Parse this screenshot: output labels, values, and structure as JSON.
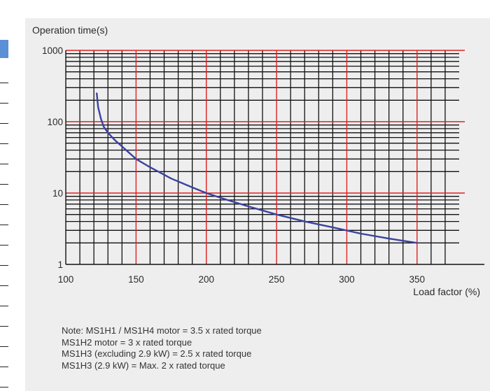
{
  "chart_data": {
    "type": "line",
    "ylabel": "Operation time(s)",
    "xlabel": "Load factor (%)",
    "xlim": [
      100,
      380
    ],
    "ylim": [
      1,
      1000
    ],
    "yscale": "log",
    "grid": true,
    "x_ticks": [
      100,
      150,
      200,
      250,
      300,
      350
    ],
    "y_ticks": [
      {
        "value": 1,
        "label": "1"
      },
      {
        "value": 10,
        "label": "10"
      },
      {
        "value": 100,
        "label": "100"
      },
      {
        "value": 1000,
        "label": "1000"
      }
    ],
    "series": [
      {
        "color": "#3b42a0",
        "x": [
          122,
          123,
          125,
          127,
          130,
          135,
          140,
          150,
          160,
          175,
          190,
          200,
          215,
          230,
          250,
          270,
          290,
          310,
          330,
          350
        ],
        "y": [
          250,
          160,
          110,
          85,
          70,
          55,
          45,
          30,
          23,
          16,
          12,
          10,
          8,
          6.5,
          5,
          4,
          3.3,
          2.7,
          2.3,
          2.0
        ]
      }
    ]
  },
  "notes": [
    "Note: MS1H1 / MS1H4 motor = 3.5 x rated torque",
    "MS1H2 motor = 3 x  rated torque",
    "MS1H3 (excluding 2.9 kW) = 2.5 x rated torque",
    "MS1H3 (2.9 kW) = Max. 2 x rated torque"
  ],
  "colors": {
    "panel": "#eeeeee",
    "major_grid": "#e02020",
    "minor_grid": "#111111",
    "curve": "#3b42a0"
  }
}
